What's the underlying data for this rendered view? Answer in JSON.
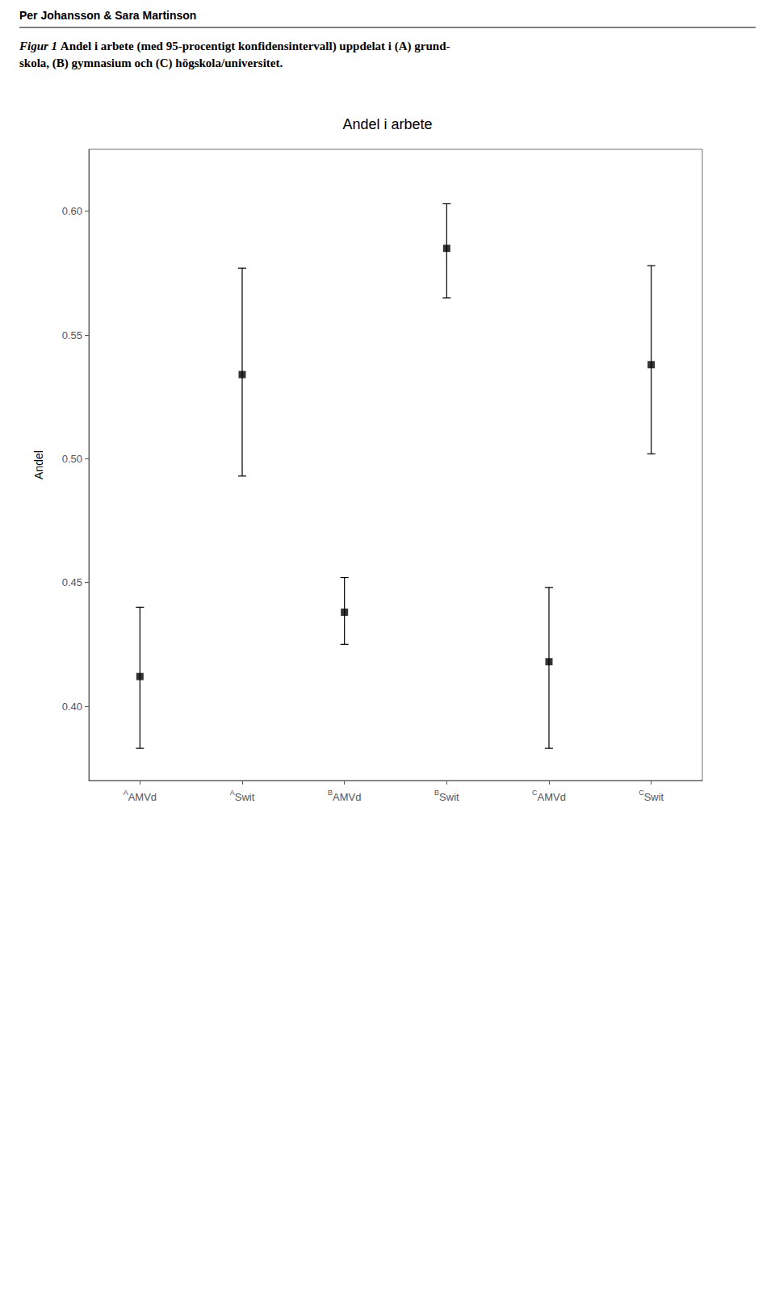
{
  "chart_data": {
    "type": "scatter",
    "title": "Andel i arbete",
    "ylabel": "Andel",
    "annotations": [
      "Per Johansson & Sara Martinson",
      "Figur 1",
      "Andel i arbete (med 95-procentigt konfidensintervall) uppdelat i (A) grund-\nskola, (B) gymnasium och (C) högskola/universitet."
    ],
    "categories": [
      "AAMVd",
      "ASwit",
      "BAMVd",
      "BSwit",
      "CAMVd",
      "CSwit"
    ],
    "values": [
      0.412,
      0.534,
      0.438,
      0.585,
      0.418,
      0.538
    ],
    "err_lower": [
      0.029,
      0.041,
      0.013,
      0.02,
      0.035,
      0.036
    ],
    "err_upper": [
      0.028,
      0.043,
      0.014,
      0.018,
      0.03,
      0.04
    ],
    "color": "#000000",
    "marker": "square",
    "ylim": [
      0.37,
      0.625
    ],
    "yticks": [
      {
        "value": 0.4,
        "label": "0.40"
      },
      0.45,
      {
        "value": 0.5,
        "label": "0.50"
      },
      0.55,
      {
        "value": 0.6,
        "label": "0.60"
      }
    ],
    "grid": false
  }
}
